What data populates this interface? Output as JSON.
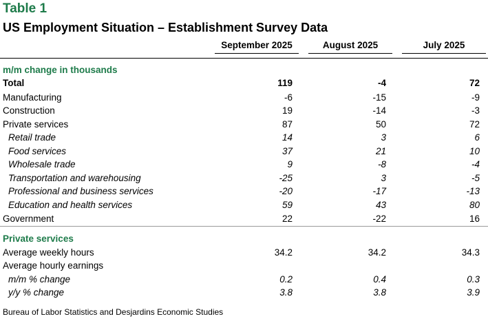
{
  "table_label": "Table 1",
  "title": "US Employment Situation – Establishment Survey Data",
  "columns": [
    "September 2025",
    "August 2025",
    "July 2025"
  ],
  "sections": {
    "mm_change": "m/m change in thousands",
    "private_services": "Private services"
  },
  "rows": {
    "total": {
      "label": "Total",
      "values": [
        "119",
        "-4",
        "72"
      ]
    },
    "manufacturing": {
      "label": "Manufacturing",
      "values": [
        "-6",
        "-15",
        "-9"
      ]
    },
    "construction": {
      "label": "Construction",
      "values": [
        "19",
        "-14",
        "-3"
      ]
    },
    "private_services": {
      "label": "Private services",
      "values": [
        "87",
        "50",
        "72"
      ]
    },
    "retail_trade": {
      "label": "Retail trade",
      "values": [
        "14",
        "3",
        "6"
      ]
    },
    "food_services": {
      "label": "Food services",
      "values": [
        "37",
        "21",
        "10"
      ]
    },
    "wholesale_trade": {
      "label": "Wholesale trade",
      "values": [
        "9",
        "-8",
        "-4"
      ]
    },
    "transportation": {
      "label": "Transportation and warehousing",
      "values": [
        "-25",
        "3",
        "-5"
      ]
    },
    "professional": {
      "label": "Professional and business services",
      "values": [
        "-20",
        "-17",
        "-13"
      ]
    },
    "education_health": {
      "label": "Education and health services",
      "values": [
        "59",
        "43",
        "80"
      ]
    },
    "government": {
      "label": "Government",
      "values": [
        "22",
        "-22",
        "16"
      ]
    },
    "weekly_hours": {
      "label": "Average weekly hours",
      "values": [
        "34.2",
        "34.2",
        "34.3"
      ]
    },
    "hourly_earnings": {
      "label": "Average hourly earnings"
    },
    "mm_pct": {
      "label": "m/m % change",
      "values": [
        "0.2",
        "0.4",
        "0.3"
      ]
    },
    "yy_pct": {
      "label": "y/y % change",
      "values": [
        "3.8",
        "3.8",
        "3.9"
      ]
    }
  },
  "source": "Bureau of Labor Statistics and Desjardins Economic Studies",
  "colors": {
    "accent": "#1e7b4a"
  }
}
